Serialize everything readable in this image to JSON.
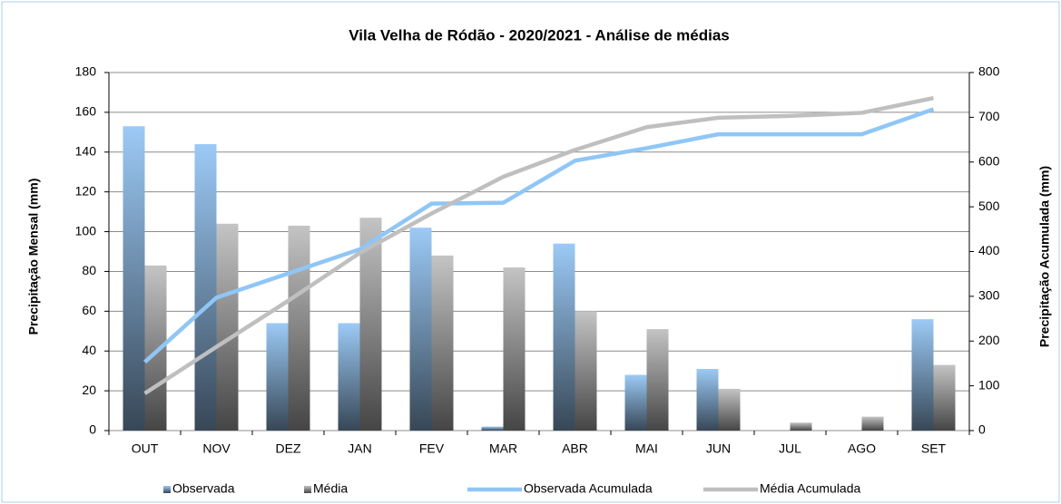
{
  "chart_data": {
    "type": "bar_line",
    "title": "Vila Velha de Ródão - 2020/2021 - Análise de médias",
    "ylabel": "Precipitação Mensal (mm)",
    "y2label": "Precipitação Acumulada  (mm)",
    "categories": [
      "OUT",
      "NOV",
      "DEZ",
      "JAN",
      "FEV",
      "MAR",
      "ABR",
      "MAI",
      "JUN",
      "JUL",
      "AGO",
      "SET"
    ],
    "series": [
      {
        "name": "Observada",
        "type": "bar",
        "color": "#9ccaf6",
        "values": [
          153,
          144,
          54,
          54,
          102,
          2,
          94,
          28,
          31,
          0,
          0,
          56
        ]
      },
      {
        "name": "Média",
        "type": "bar",
        "color": "#c4c4c4",
        "values": [
          83,
          104,
          103,
          107,
          88,
          82,
          60,
          51,
          21,
          4,
          7,
          33
        ]
      },
      {
        "name": "Observada Acumulada",
        "type": "line",
        "axis": "y2",
        "color": "#8fc6f7",
        "values": [
          153,
          297,
          351,
          405,
          507,
          509,
          603,
          631,
          662,
          662,
          662,
          718
        ]
      },
      {
        "name": "Média Acumulada",
        "type": "line",
        "axis": "y2",
        "color": "#bfbfbf",
        "values": [
          83,
          187,
          290,
          397,
          485,
          567,
          627,
          678,
          699,
          703,
          710,
          743
        ]
      }
    ],
    "ylim": [
      0,
      180
    ],
    "yticks": [
      0,
      20,
      40,
      60,
      80,
      100,
      120,
      140,
      160,
      180
    ],
    "y2lim": [
      0,
      800
    ],
    "y2ticks": [
      0,
      100,
      200,
      300,
      400,
      500,
      600,
      700,
      800
    ],
    "grid": true
  }
}
